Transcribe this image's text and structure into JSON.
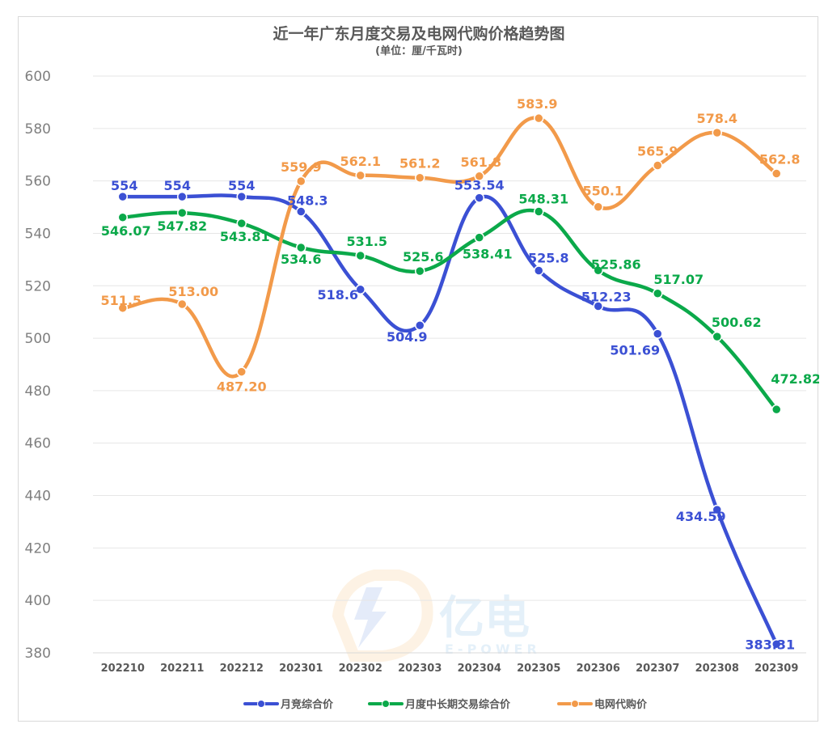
{
  "chart_data": {
    "type": "line",
    "title": "近一年广东月度交易及电网代购价格趋势图",
    "subtitle": "(单位：厘/千瓦时)",
    "categories": [
      "202210",
      "202211",
      "202212",
      "202301",
      "202302",
      "202303",
      "202304",
      "202305",
      "202306",
      "202307",
      "202308",
      "202309"
    ],
    "ylim": [
      380,
      600
    ],
    "yticks": [
      "380",
      "400",
      "420",
      "440",
      "460",
      "480",
      "500",
      "520",
      "540",
      "560",
      "580",
      "600"
    ],
    "grid": true,
    "legend_position": "bottom",
    "series": [
      {
        "name": "月竞综合价",
        "color": "#3b50d4",
        "values": [
          554,
          554,
          554,
          548.3,
          518.6,
          504.9,
          553.54,
          525.8,
          512.23,
          501.69,
          434.59,
          383.31
        ],
        "labels": [
          "554",
          "554",
          "554",
          "548.3",
          "518.6",
          "504.9",
          "553.54",
          "525.8",
          "512.23",
          "501.69",
          "434.59",
          "383.31"
        ]
      },
      {
        "name": "月度中长期交易综合价",
        "color": "#0ba94a",
        "values": [
          546.07,
          547.82,
          543.81,
          534.6,
          531.5,
          525.6,
          538.41,
          548.31,
          525.86,
          517.07,
          500.62,
          472.82
        ],
        "labels": [
          "546.07",
          "547.82",
          "543.81",
          "534.6",
          "531.5",
          "525.6",
          "538.41",
          "548.31",
          "525.86",
          "517.07",
          "500.62",
          "472.82"
        ]
      },
      {
        "name": "电网代购价",
        "color": "#f29a4a",
        "values": [
          511.5,
          513.0,
          487.2,
          559.9,
          562.1,
          561.2,
          561.8,
          583.9,
          550.1,
          565.9,
          578.4,
          562.8
        ],
        "labels": [
          "511.5",
          "513.00",
          "487.20",
          "559.9",
          "562.1",
          "561.2",
          "561.8",
          "583.9",
          "550.1",
          "565.9",
          "578.4",
          "562.8"
        ]
      }
    ],
    "watermark": {
      "text": "亿电",
      "subtext": "E-POWER"
    }
  }
}
